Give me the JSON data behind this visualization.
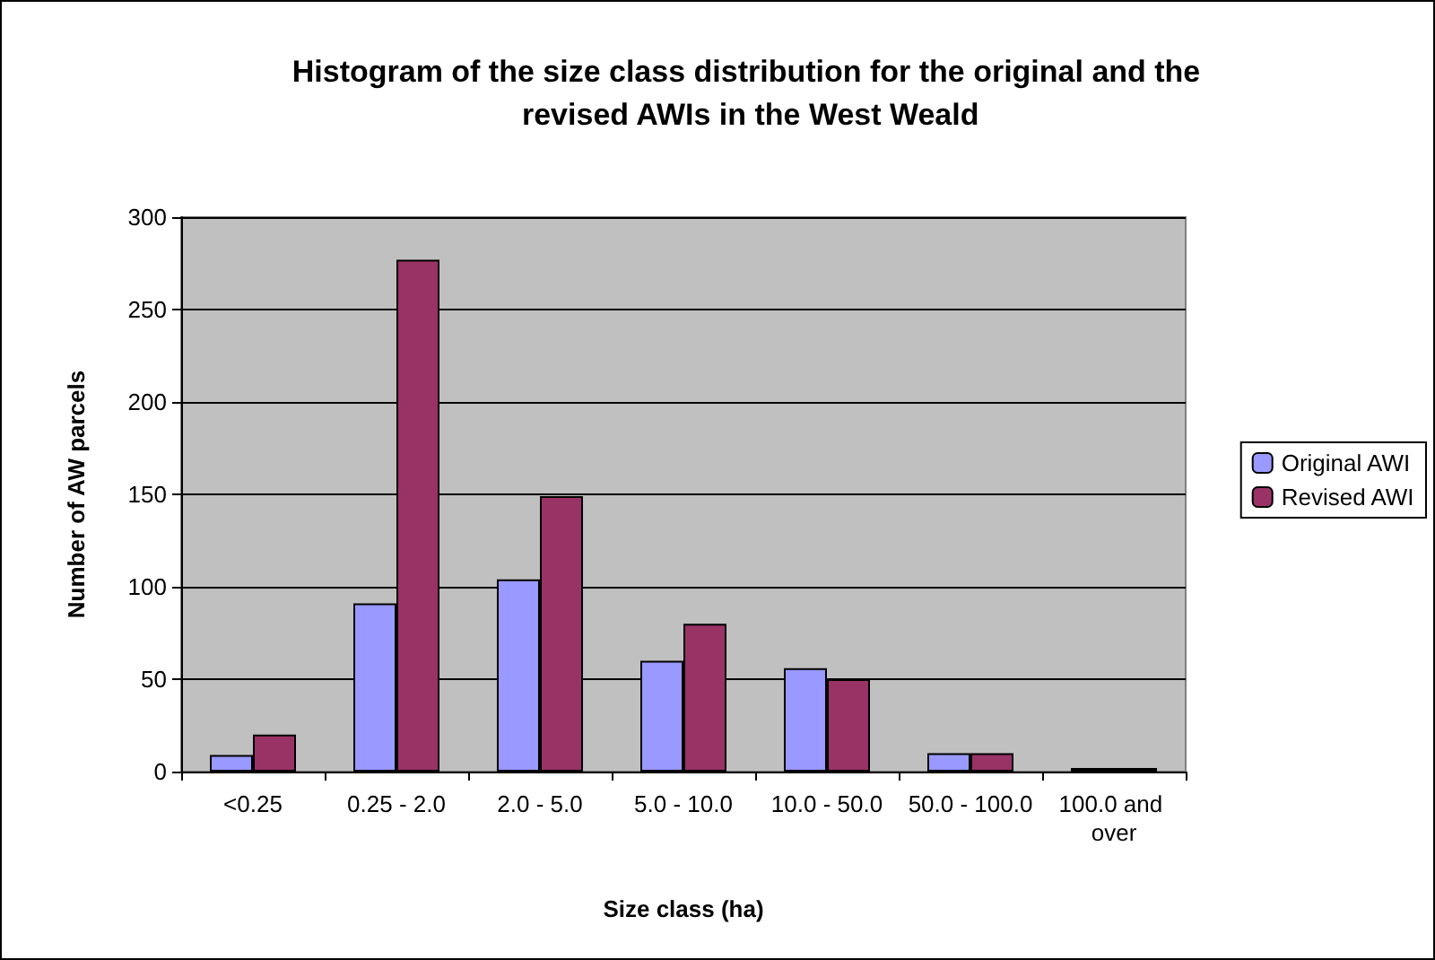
{
  "chart_data": {
    "type": "bar",
    "title": "Histogram of the size class distribution for the original and the revised AWIs in the West Weald",
    "xlabel": "Size class (ha)",
    "ylabel": "Number of AW parcels",
    "categories": [
      "<0.25",
      "0.25 - 2.0",
      "2.0 - 5.0",
      "5.0 - 10.0",
      "10.0 - 50.0",
      "50.0 - 100.0",
      "100.0 and over"
    ],
    "series": [
      {
        "name": "Original AWI",
        "color": "#9999ff",
        "values": [
          9,
          91,
          104,
          60,
          56,
          10,
          2
        ]
      },
      {
        "name": "Revised AWI",
        "color": "#993366",
        "values": [
          20,
          277,
          149,
          80,
          50,
          10,
          2
        ]
      }
    ],
    "ylim": [
      0,
      300
    ],
    "yticks": [
      0,
      50,
      100,
      150,
      200,
      250,
      300
    ],
    "grid": "y",
    "legend": "right"
  }
}
